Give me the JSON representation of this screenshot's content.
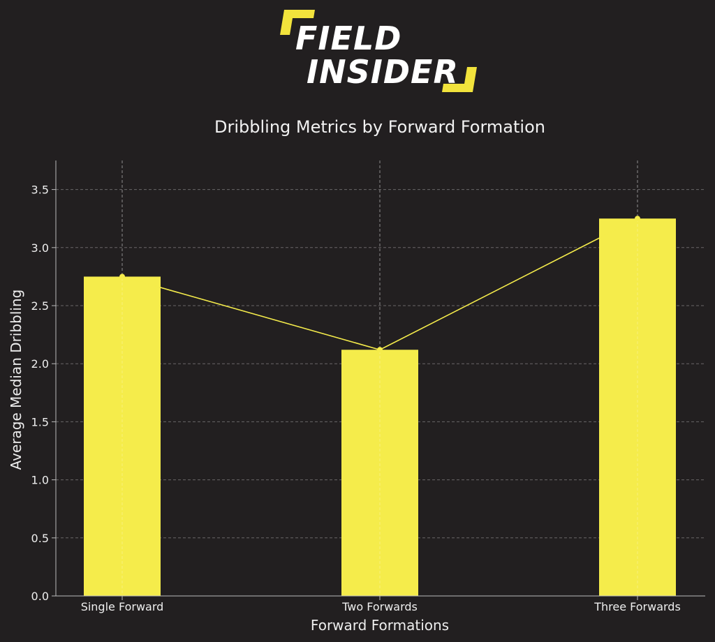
{
  "logo": {
    "line1": "FIELD",
    "line2": "INSIDER",
    "accent_color": "#f2e33c"
  },
  "chart_data": {
    "type": "bar",
    "title": "Dribbling Metrics by Forward Formation",
    "xlabel": "Forward Formations",
    "ylabel": "Average Median Dribbling",
    "categories": [
      "Single Forward",
      "Two Forwards",
      "Three Forwards"
    ],
    "values": [
      2.75,
      2.12,
      3.25
    ],
    "line_overlay": true,
    "ylim": [
      0,
      3.75
    ],
    "yticks": [
      "0.0",
      "0.5",
      "1.0",
      "1.5",
      "2.0",
      "2.5",
      "3.0",
      "3.5"
    ],
    "grid": true,
    "bar_color": "#f5ec4b",
    "line_color": "#f5ec4b",
    "background": "#221f20"
  }
}
